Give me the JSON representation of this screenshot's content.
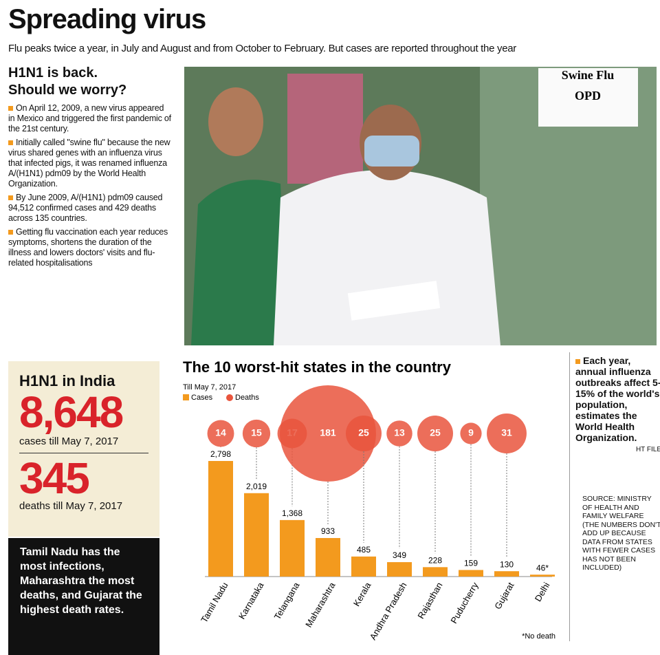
{
  "header": {
    "title": "Spreading virus",
    "subtitle": "Flu peaks twice a year, in July and August and from October to February. But cases are reported throughout the year"
  },
  "story": {
    "title": [
      "H1N1 is back.",
      "Should we worry?"
    ],
    "bullets": [
      "On April 12, 2009, a new virus appeared in Mexico and triggered the first pandemic of the 21st century.",
      "Initially called \"swine flu\" because the new virus shared genes with an influenza virus that infected pigs, it was renamed influenza A/(H1N1) pdm09 by the World Health Organization.",
      "By June 2009, A/(H1N1) pdm09 caused 94,512 confirmed cases and 429 deaths across 135 countries.",
      "Getting flu vaccination each year reduces symptoms, shortens the duration of the illness and lowers doctors' visits and flu-related hospitalisations"
    ]
  },
  "photo": {
    "sign": [
      "Swine Flu",
      "OPD"
    ]
  },
  "india": {
    "title": "H1N1 in India",
    "cases": "8,648",
    "cases_label": "cases till May 7, 2017",
    "deaths": "345",
    "deaths_label": "deaths till May 7, 2017",
    "summary": "Tamil Nadu has the most infections, Maharashtra the most deaths, and Gujarat the highest death rates."
  },
  "side": {
    "text": "Each year, annual influenza outbreaks affect 5-15% of the world's population, estimates the World Health Organization.",
    "credit": "HT FILE",
    "source": "SOURCE: MINISTRY OF HEALTH AND FAMILY WELFARE (THE NUMBERS DON'T ADD UP BECAUSE DATA FROM STATES WITH FEWER CASES HAS NOT BEEN INCLUDED)"
  },
  "chart_data": {
    "type": "bar",
    "title": "The 10 worst-hit states in the country",
    "subtitle": "Till May 7, 2017",
    "categories": [
      "Tamil Nadu",
      "Karnataka",
      "Telangana",
      "Maharashtra",
      "Kerala",
      "Andhra Pradesh",
      "Rajasthan",
      "Puducherry",
      "Gujarat",
      "Delhi"
    ],
    "series": [
      {
        "name": "Cases",
        "color": "#f39a1e",
        "values": [
          2798,
          2019,
          1368,
          933,
          485,
          349,
          228,
          159,
          130,
          46
        ],
        "value_labels": [
          "2,798",
          "2,019",
          "1,368",
          "933",
          "485",
          "349",
          "228",
          "159",
          "130",
          "46*"
        ]
      },
      {
        "name": "Deaths",
        "color": "#e9553d",
        "values": [
          14,
          15,
          17,
          181,
          25,
          13,
          25,
          9,
          31,
          null
        ]
      }
    ],
    "note": "*No death"
  }
}
